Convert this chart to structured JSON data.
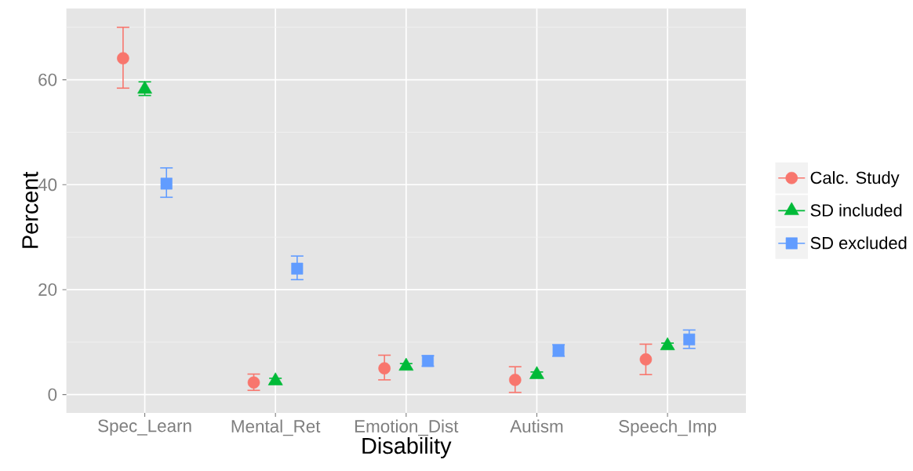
{
  "chart_data": {
    "type": "scatter",
    "xlabel": "Disability",
    "ylabel": "Percent",
    "categories": [
      "Spec_Learn",
      "Mental_Ret",
      "Emotion_Dist",
      "Autism",
      "Speech_Imp"
    ],
    "series": [
      {
        "name": "Calc. Study",
        "color": "#f8766d",
        "marker": "circle",
        "values": [
          64.1,
          2.3,
          5.0,
          2.8,
          6.7
        ],
        "errors": [
          [
            58.4,
            70.0
          ],
          [
            0.8,
            3.9
          ],
          [
            2.8,
            7.5
          ],
          [
            0.4,
            5.3
          ],
          [
            3.8,
            9.6
          ]
        ]
      },
      {
        "name": "SD included",
        "color": "#00ba38",
        "marker": "triangle",
        "values": [
          58.2,
          2.6,
          5.4,
          3.8,
          9.3
        ],
        "errors": [
          [
            57.0,
            59.6
          ],
          [
            2.1,
            3.1
          ],
          [
            4.9,
            5.9
          ],
          [
            3.3,
            4.3
          ],
          [
            8.8,
            9.8
          ]
        ]
      },
      {
        "name": "SD excluded",
        "color": "#619cff",
        "marker": "square",
        "values": [
          40.2,
          24.0,
          6.4,
          8.4,
          10.5
        ],
        "errors": [
          [
            37.6,
            43.2
          ],
          [
            21.9,
            26.4
          ],
          [
            5.4,
            7.4
          ],
          [
            7.3,
            9.5
          ],
          [
            8.8,
            12.3
          ]
        ]
      }
    ],
    "ylim": [
      -3.5,
      73.6
    ],
    "yticks": [
      0,
      20,
      40,
      60
    ],
    "grid": true,
    "legend": "right"
  }
}
